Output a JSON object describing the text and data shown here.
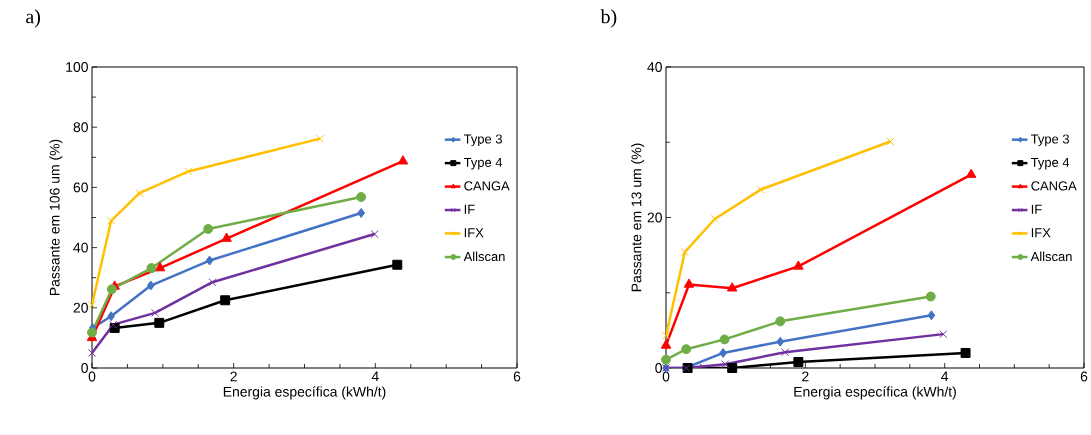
{
  "chart_data": [
    {
      "type": "line",
      "title": "a)",
      "xlabel": "Energia específica (kWh/t)",
      "ylabel": "Passante em 106 um (%)",
      "xlim": [
        0,
        6
      ],
      "xticks": [
        0,
        2,
        4,
        6
      ],
      "ylim": [
        0,
        100
      ],
      "yticks": [
        0,
        20,
        40,
        60,
        80,
        100
      ],
      "legend": "right",
      "grid": false,
      "series": [
        {
          "name": "Type 3",
          "color": "#4472c4",
          "marker": "diamond",
          "x": [
            0.01,
            0.27,
            0.83,
            1.66,
            3.8
          ],
          "values": [
            13.3,
            17.2,
            27.4,
            35.7,
            51.5
          ]
        },
        {
          "name": "Type 4",
          "color": "#000000",
          "marker": "square",
          "x": [
            0.32,
            0.95,
            1.88,
            4.31
          ],
          "values": [
            13.3,
            15.0,
            22.5,
            34.3
          ]
        },
        {
          "name": "CANGA",
          "color": "#ff0000",
          "marker": "triangle",
          "x": [
            0,
            0.32,
            0.96,
            1.9,
            4.39
          ],
          "values": [
            10.0,
            27.1,
            33.2,
            43.0,
            68.7
          ]
        },
        {
          "name": "IF",
          "color": "#7030a0",
          "marker": "cross",
          "x": [
            0,
            0.3,
            0.89,
            1.7,
            3.99
          ],
          "values": [
            5.0,
            14.4,
            18.3,
            28.5,
            44.5
          ]
        },
        {
          "name": "IFX",
          "color": "#ffc000",
          "marker": "cross",
          "x": [
            0,
            0.27,
            0.67,
            1.36,
            3.22
          ],
          "values": [
            21.0,
            48.9,
            58.1,
            65.3,
            76.2
          ]
        },
        {
          "name": "Allscan",
          "color": "#70ad47",
          "marker": "circle",
          "x": [
            0,
            0.28,
            0.84,
            1.64,
            3.8
          ],
          "values": [
            11.8,
            26.2,
            33.2,
            46.2,
            56.8
          ]
        }
      ]
    },
    {
      "type": "line",
      "title": "b)",
      "xlabel": "Energia específica (kWh/t)",
      "ylabel": "Passante em 13 um (%)",
      "xlim": [
        0,
        6
      ],
      "xticks": [
        0,
        2,
        4,
        6
      ],
      "ylim": [
        0,
        40
      ],
      "yticks": [
        0,
        20,
        40
      ],
      "legend": "right",
      "grid": false,
      "series": [
        {
          "name": "Type 3",
          "color": "#4472c4",
          "marker": "diamond",
          "x": [
            0,
            0.28,
            0.82,
            1.64,
            3.81
          ],
          "values": [
            0,
            0,
            2.0,
            3.5,
            7.0
          ]
        },
        {
          "name": "Type 4",
          "color": "#000000",
          "marker": "square",
          "x": [
            0.31,
            0.95,
            1.9,
            4.3
          ],
          "values": [
            0,
            0,
            0.8,
            2.0
          ]
        },
        {
          "name": "CANGA",
          "color": "#ff0000",
          "marker": "triangle",
          "x": [
            0,
            0.33,
            0.95,
            1.9,
            4.38
          ],
          "values": [
            3.0,
            11.1,
            10.6,
            13.5,
            25.7
          ]
        },
        {
          "name": "IF",
          "color": "#7030a0",
          "marker": "cross",
          "x": [
            0,
            0.29,
            0.85,
            1.71,
            3.98
          ],
          "values": [
            0,
            0,
            0.5,
            2.1,
            4.5
          ]
        },
        {
          "name": "IFX",
          "color": "#ffc000",
          "marker": "cross",
          "x": [
            0,
            0.27,
            0.7,
            1.36,
            3.22
          ],
          "values": [
            4.3,
            15.4,
            19.8,
            23.7,
            30.1
          ]
        },
        {
          "name": "Allscan",
          "color": "#70ad47",
          "marker": "circle",
          "x": [
            0,
            0.29,
            0.84,
            1.64,
            3.8
          ],
          "values": [
            1.1,
            2.5,
            3.8,
            6.2,
            9.5
          ]
        }
      ]
    }
  ]
}
